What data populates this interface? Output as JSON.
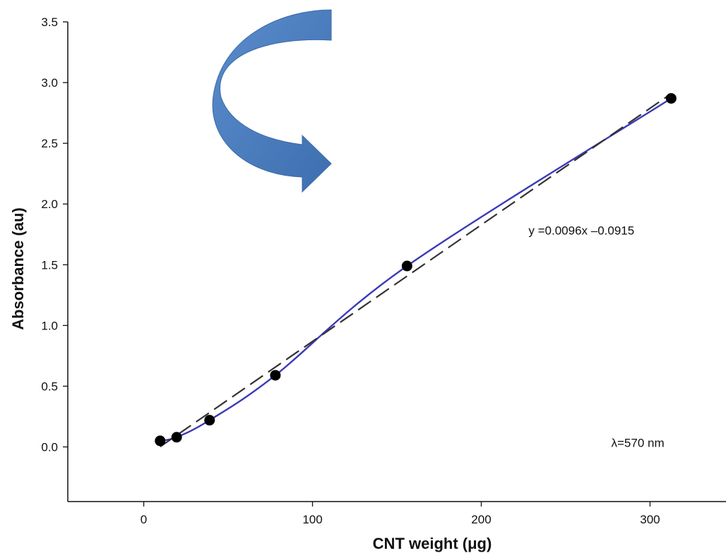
{
  "chart_data": {
    "type": "scatter",
    "title": "",
    "xlabel": "CNT weight (μg)",
    "ylabel": "Absorbance (au)",
    "xlim": [
      -45,
      345
    ],
    "ylim": [
      -0.45,
      3.5
    ],
    "x_ticks": [
      0,
      100,
      200,
      300
    ],
    "y_ticks": [
      0.0,
      0.5,
      1.0,
      1.5,
      2.0,
      2.5,
      3.0,
      3.5
    ],
    "x_tick_labels": [
      "0",
      "100",
      "200",
      "300"
    ],
    "y_tick_labels": [
      "0.0",
      "0.5",
      "1.0",
      "1.5",
      "2.0",
      "2.5",
      "3.0",
      "3.5"
    ],
    "grid": false,
    "series": [
      {
        "kind": "points",
        "x": [
          9.7,
          19.5,
          39,
          78,
          156,
          312.5
        ],
        "y": [
          0.05,
          0.08,
          0.22,
          0.59,
          1.49,
          2.87
        ],
        "color": "#000000"
      },
      {
        "kind": "smooth-fit",
        "x": [
          9.7,
          19.5,
          39,
          78,
          156,
          312.5
        ],
        "y": [
          0.05,
          0.08,
          0.22,
          0.59,
          1.49,
          2.87
        ],
        "color": "#3a3ab8"
      },
      {
        "kind": "linear-fit",
        "slope": 0.0096,
        "intercept": -0.0915,
        "x_range": [
          9.7,
          312.5
        ],
        "color": "#333333"
      }
    ],
    "annotations": [
      {
        "text": "y =0.0096x –0.0915",
        "x": 228,
        "y": 1.75
      },
      {
        "text": "λ=570 nm",
        "x": 277,
        "y": 0.0
      }
    ],
    "decoration": {
      "name": "curved-arrow",
      "color": "#4f81bd"
    }
  }
}
